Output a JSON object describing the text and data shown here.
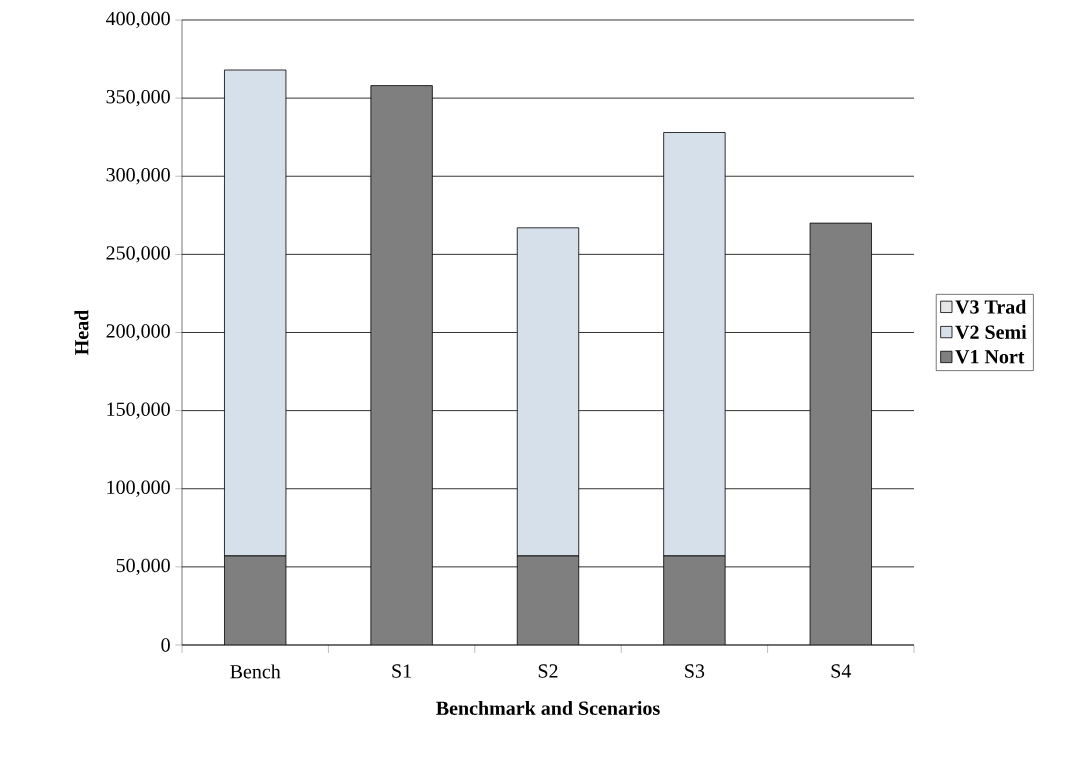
{
  "chart_data": {
    "type": "bar",
    "stacked": true,
    "xlabel": "Benchmark and Scenarios",
    "ylabel": "Head",
    "categories": [
      "Bench",
      "S1",
      "S2",
      "S3",
      "S4"
    ],
    "ylim": [
      0,
      400000
    ],
    "yticks": [
      {
        "value": 0,
        "label": "0"
      },
      {
        "value": 50000,
        "label": "50,000"
      },
      {
        "value": 100000,
        "label": "100,000"
      },
      {
        "value": 150000,
        "label": "150,000"
      },
      {
        "value": 200000,
        "label": "200,000"
      },
      {
        "value": 250000,
        "label": "250,000"
      },
      {
        "value": 300000,
        "label": "300,000"
      },
      {
        "value": 350000,
        "label": "350,000"
      },
      {
        "value": 400000,
        "label": "400,000"
      }
    ],
    "grid": "y",
    "legend": "right",
    "series": [
      {
        "name": "V1 Nort",
        "color": "#7f7f7f",
        "values": [
          57000,
          358000,
          57000,
          57000,
          270000
        ]
      },
      {
        "name": "V2 Semi",
        "color": "#d6e0ea",
        "values": [
          311000,
          0,
          210000,
          271000,
          0
        ]
      },
      {
        "name": "V3 Trad",
        "color": "#e6e6e6",
        "values": [
          0,
          0,
          0,
          0,
          0
        ]
      }
    ]
  }
}
